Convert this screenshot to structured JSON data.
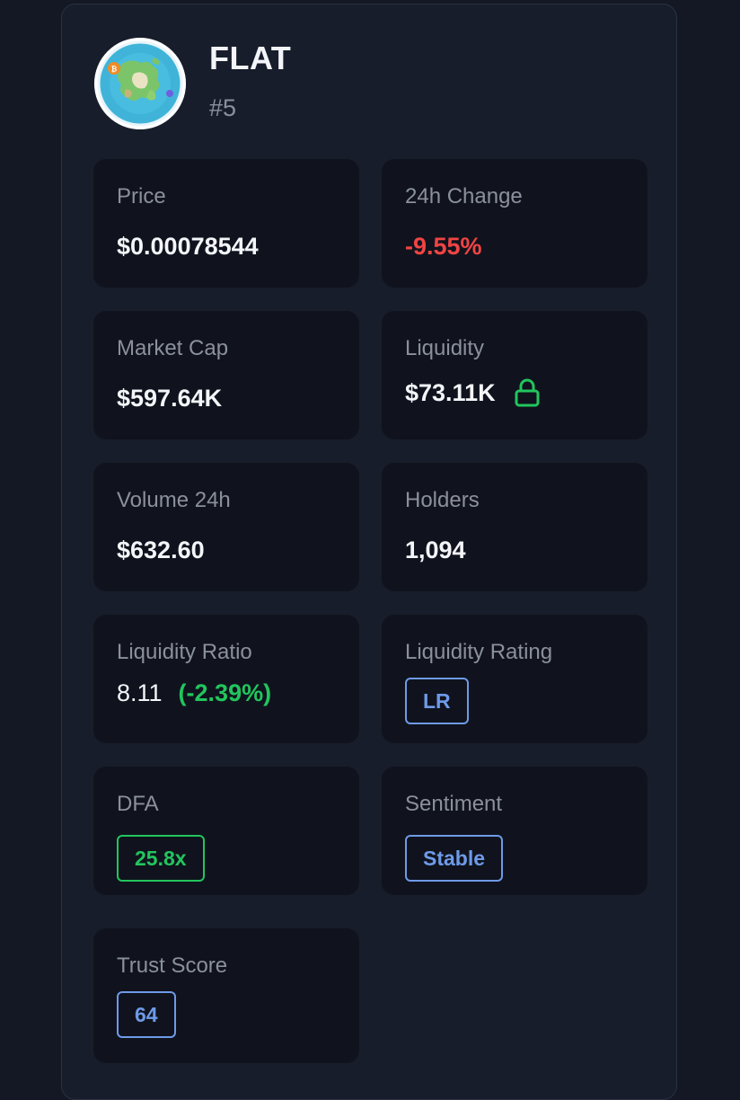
{
  "token": {
    "name": "FLAT",
    "rank": "#5"
  },
  "stats": {
    "price": {
      "label": "Price",
      "value": "$0.00078544"
    },
    "change_24h": {
      "label": "24h Change",
      "value": "-9.55%"
    },
    "market_cap": {
      "label": "Market Cap",
      "value": "$597.64K"
    },
    "liquidity": {
      "label": "Liquidity",
      "value": "$73.11K",
      "icon": "lock-icon"
    },
    "volume_24h": {
      "label": "Volume 24h",
      "value": "$632.60"
    },
    "holders": {
      "label": "Holders",
      "value": "1,094"
    },
    "liquidity_ratio": {
      "label": "Liquidity Ratio",
      "value": "8.11",
      "change": "(-2.39%)"
    },
    "liquidity_rating": {
      "label": "Liquidity Rating",
      "badge": "LR"
    },
    "dfa": {
      "label": "DFA",
      "badge": "25.8x"
    },
    "sentiment": {
      "label": "Sentiment",
      "badge": "Stable"
    },
    "trust_score": {
      "label": "Trust Score",
      "badge": "64"
    }
  },
  "colors": {
    "negative": "#ef4444",
    "positive": "#22c55e",
    "badge_blue": "#6e9ae8",
    "tile_bg": "#10131d",
    "card_bg": "#181d2b"
  }
}
